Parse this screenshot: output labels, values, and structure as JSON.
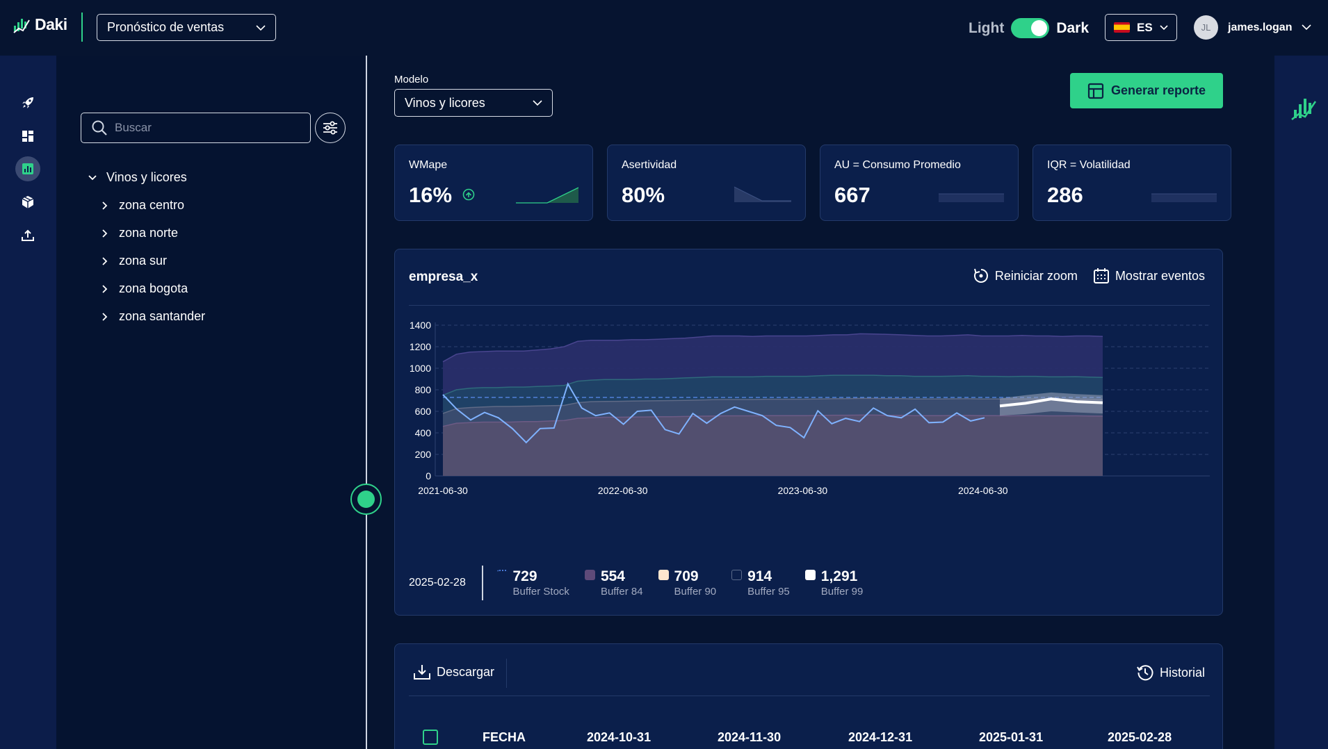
{
  "app": {
    "brand": "Daki",
    "module": "Pronóstico de ventas"
  },
  "header": {
    "theme_light": "Light",
    "theme_dark": "Dark",
    "language": "ES",
    "user_initials": "JL",
    "user_name": "james.logan"
  },
  "nav": {
    "items": [
      "rocket-icon",
      "dashboard-icon",
      "chart-icon",
      "box-icon",
      "upload-icon"
    ],
    "active_index": 2
  },
  "tree": {
    "search_placeholder": "Buscar",
    "root": "Vinos y licores",
    "children": [
      "zona centro",
      "zona norte",
      "zona sur",
      "zona bogota",
      "zona santander"
    ]
  },
  "main": {
    "model_label": "Modelo",
    "model_value": "Vinos y licores",
    "generate_label": "Generar reporte",
    "kpis": [
      {
        "label": "WMape",
        "value": "16%"
      },
      {
        "label": "Asertividad",
        "value": "80%"
      },
      {
        "label": "AU = Consumo Promedio",
        "value": "667"
      },
      {
        "label": "IQR = Volatilidad",
        "value": "286"
      }
    ],
    "chart_card": {
      "title": "empresa_x",
      "reset_zoom": "Reiniciar zoom",
      "show_events": "Mostrar eventos"
    },
    "legend": {
      "date": "2025-02-28",
      "items": [
        {
          "value": "729",
          "label": "Buffer Stock",
          "color": "#7aa7ff"
        },
        {
          "value": "554",
          "label": "Buffer 84",
          "color": "#6f5a8c"
        },
        {
          "value": "709",
          "label": "Buffer 90",
          "color": "#fde6cf"
        },
        {
          "value": "914",
          "label": "Buffer 95",
          "color": "#12314f"
        },
        {
          "value": "1,291",
          "label": "Buffer 99",
          "color": "#ffffff"
        }
      ]
    },
    "table": {
      "download": "Descargar",
      "history": "Historial",
      "columns": [
        "FECHA",
        "2024-10-31",
        "2024-11-30",
        "2024-12-31",
        "2025-01-31",
        "2025-02-28"
      ]
    }
  },
  "chart_data": {
    "type": "area",
    "title": "empresa_x",
    "xlabel": "",
    "ylabel": "",
    "ylim": [
      0,
      1400
    ],
    "yticks": [
      0,
      200,
      400,
      600,
      800,
      1000,
      1200,
      1400
    ],
    "x_tick_labels": [
      "2021-06-30",
      "2022-06-30",
      "2023-06-30",
      "2024-06-30"
    ],
    "x_range": [
      "2021-06-30",
      "2025-02-28"
    ],
    "grid": "horizontal dashed",
    "buffer_stock_level": 729,
    "bands": [
      {
        "name": "Buffer 99",
        "values": [
          1060,
          1130,
          1150,
          1155,
          1160,
          1160,
          1160,
          1170,
          1180,
          1200,
          1250,
          1260,
          1260,
          1260,
          1265,
          1265,
          1270,
          1275,
          1280,
          1290,
          1300,
          1300,
          1300,
          1295,
          1300,
          1300,
          1300,
          1300,
          1305,
          1310,
          1310,
          1320,
          1318,
          1315,
          1310,
          1305,
          1300,
          1300,
          1305,
          1310,
          1300,
          1300,
          1300,
          1305,
          1300,
          1300,
          1295,
          1300,
          1300,
          1295
        ]
      },
      {
        "name": "Buffer 95",
        "values": [
          750,
          800,
          815,
          820,
          820,
          825,
          825,
          830,
          835,
          840,
          880,
          890,
          895,
          895,
          895,
          900,
          900,
          905,
          910,
          915,
          920,
          920,
          920,
          920,
          925,
          925,
          925,
          925,
          930,
          935,
          935,
          935,
          935,
          930,
          930,
          925,
          925,
          925,
          928,
          930,
          925,
          925,
          922,
          925,
          925,
          920,
          920,
          922,
          918,
          915
        ]
      },
      {
        "name": "Buffer 90",
        "values": [
          580,
          625,
          635,
          640,
          645,
          645,
          648,
          650,
          652,
          655,
          680,
          690,
          692,
          693,
          695,
          697,
          698,
          700,
          702,
          705,
          708,
          710,
          710,
          710,
          712,
          712,
          712,
          713,
          715,
          717,
          718,
          720,
          720,
          718,
          718,
          715,
          715,
          715,
          716,
          717,
          715,
          715,
          714,
          715,
          715,
          712,
          712,
          713,
          712,
          710
        ]
      },
      {
        "name": "Buffer 84",
        "values": [
          460,
          490,
          495,
          500,
          500,
          500,
          505,
          505,
          510,
          515,
          535,
          540,
          545,
          545,
          547,
          548,
          550,
          550,
          552,
          555,
          557,
          558,
          558,
          558,
          560,
          560,
          560,
          560,
          562,
          564,
          564,
          565,
          565,
          563,
          563,
          560,
          560,
          560,
          561,
          562,
          560,
          560,
          558,
          560,
          560,
          558,
          558,
          559,
          557,
          555
        ]
      }
    ],
    "series": [
      {
        "name": "Actual",
        "values": [
          755,
          620,
          520,
          590,
          540,
          440,
          310,
          440,
          445,
          855,
          630,
          560,
          585,
          480,
          600,
          610,
          430,
          390,
          580,
          490,
          580,
          640,
          600,
          560,
          470,
          450,
          355,
          605,
          485,
          535,
          505,
          630,
          560,
          540,
          620,
          495,
          500,
          585,
          510,
          540
        ]
      },
      {
        "name": "Forecast",
        "values": [
          650,
          675,
          715,
          690,
          680
        ]
      }
    ],
    "forecast_band": {
      "upper": [
        720,
        750,
        775,
        760,
        750
      ],
      "lower": [
        560,
        575,
        600,
        590,
        580
      ]
    }
  }
}
